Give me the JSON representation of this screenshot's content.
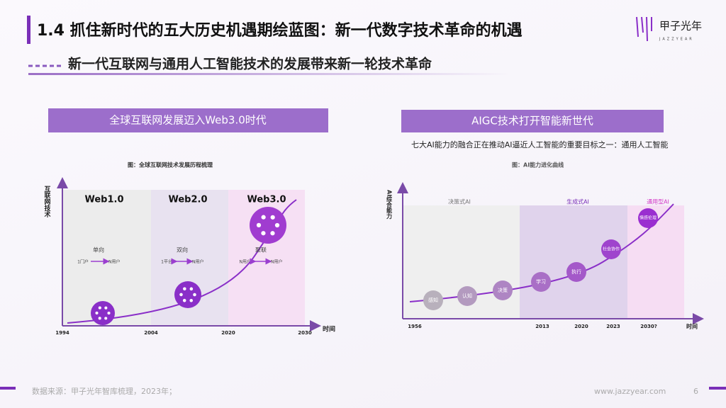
{
  "header": {
    "title": "1.4 抓住新时代的五大历史机遇期绘蓝图：新一代数字技术革命的机遇",
    "subtitle": "新一代互联网与通用人工智能技术的发展带来新一轮技术革命",
    "logo_cn": "甲子光年",
    "logo_en": "JAZZYEAR"
  },
  "left": {
    "banner": "全球互联网发展迈入Web3.0时代",
    "caption": "图：全球互联网技术发展历程梳理",
    "y_axis": "互联网技术",
    "x_axis": "时间",
    "stages": [
      {
        "name": "Web1.0",
        "mode": "单向",
        "from": "1门户",
        "to": "N用户"
      },
      {
        "name": "Web2.0",
        "mode": "双向",
        "from": "1平台",
        "to": "N用户"
      },
      {
        "name": "Web3.0",
        "mode": "聚联",
        "from": "N用户",
        "to": "N用户"
      }
    ],
    "years": [
      "1994",
      "2004",
      "2020",
      "2030"
    ]
  },
  "right": {
    "banner": "AIGC技术打开智能新世代",
    "text": "七大AI能力的融合正在推动AI逼近人工智能的重要目标之一：通用人工智能",
    "caption": "图：AI能力进化曲线",
    "y_axis": "AI综合能力",
    "x_axis": "时间",
    "stages": [
      "决策式AI",
      "生成式AI",
      "通用型AI"
    ],
    "nodes": [
      "感知",
      "认知",
      "决策",
      "学习",
      "执行",
      "社会协作",
      "情感伦理"
    ],
    "years": [
      "1956",
      "2013",
      "2020",
      "2023",
      "2030?"
    ]
  },
  "footer": {
    "source": "数据来源：甲子光年智库梳理，2023年；",
    "website": "www.jazzyear.com",
    "page": "6"
  }
}
